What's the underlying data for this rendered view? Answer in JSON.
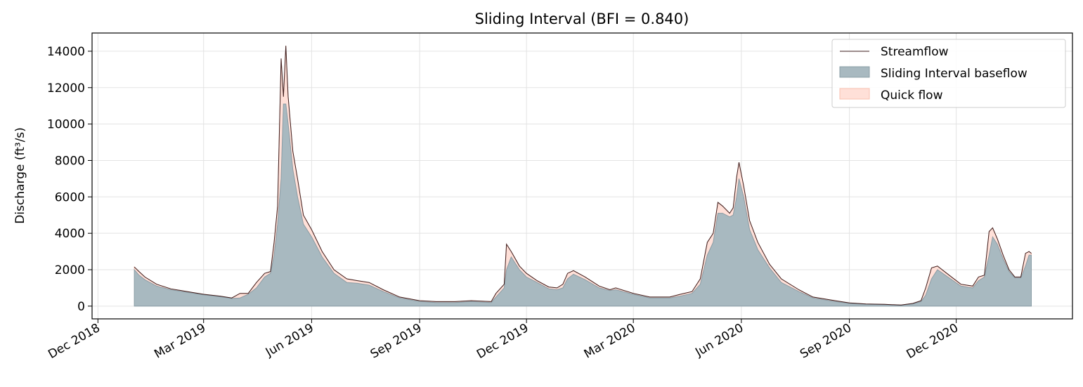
{
  "chart_data": {
    "type": "area",
    "title": "Sliding Interval (BFI = 0.840)",
    "xlabel": "",
    "ylabel": "Discharge (ft³/s)",
    "ylim": [
      -700,
      15000
    ],
    "xlim": [
      "2018-11-26",
      "2021-03-10"
    ],
    "grid": true,
    "legend_position": "top-right",
    "yticks": [
      0,
      2000,
      4000,
      6000,
      8000,
      10000,
      12000,
      14000
    ],
    "xticks": [
      {
        "date": "2018-12-01",
        "label": "Dec 2018"
      },
      {
        "date": "2019-03-01",
        "label": "Mar 2019"
      },
      {
        "date": "2019-06-01",
        "label": "Jun 2019"
      },
      {
        "date": "2019-09-01",
        "label": "Sep 2019"
      },
      {
        "date": "2019-12-01",
        "label": "Dec 2019"
      },
      {
        "date": "2020-03-01",
        "label": "Mar 2020"
      },
      {
        "date": "2020-06-01",
        "label": "Jun 2020"
      },
      {
        "date": "2020-09-01",
        "label": "Sep 2020"
      },
      {
        "date": "2020-12-01",
        "label": "Dec 2020"
      }
    ],
    "series": [
      {
        "name": "Streamflow",
        "kind": "line",
        "color": "#3d1e1e",
        "points": [
          [
            "2019-01-01",
            2150
          ],
          [
            "2019-01-05",
            1900
          ],
          [
            "2019-01-10",
            1600
          ],
          [
            "2019-01-20",
            1200
          ],
          [
            "2019-02-01",
            950
          ],
          [
            "2019-02-15",
            800
          ],
          [
            "2019-03-01",
            650
          ],
          [
            "2019-03-15",
            550
          ],
          [
            "2019-03-25",
            450
          ],
          [
            "2019-04-01",
            700
          ],
          [
            "2019-04-08",
            700
          ],
          [
            "2019-04-15",
            1300
          ],
          [
            "2019-04-22",
            1800
          ],
          [
            "2019-04-27",
            1900
          ],
          [
            "2019-04-30",
            3500
          ],
          [
            "2019-05-03",
            5500
          ],
          [
            "2019-05-06",
            13600
          ],
          [
            "2019-05-08",
            11500
          ],
          [
            "2019-05-10",
            14300
          ],
          [
            "2019-05-12",
            11500
          ],
          [
            "2019-05-16",
            8500
          ],
          [
            "2019-05-20",
            7000
          ],
          [
            "2019-05-25",
            5000
          ],
          [
            "2019-06-01",
            4200
          ],
          [
            "2019-06-10",
            3000
          ],
          [
            "2019-06-20",
            2000
          ],
          [
            "2019-07-01",
            1500
          ],
          [
            "2019-07-10",
            1400
          ],
          [
            "2019-07-20",
            1300
          ],
          [
            "2019-08-01",
            900
          ],
          [
            "2019-08-15",
            500
          ],
          [
            "2019-09-01",
            300
          ],
          [
            "2019-09-15",
            250
          ],
          [
            "2019-10-01",
            250
          ],
          [
            "2019-10-15",
            300
          ],
          [
            "2019-11-01",
            250
          ],
          [
            "2019-11-05",
            700
          ],
          [
            "2019-11-12",
            1200
          ],
          [
            "2019-11-14",
            3400
          ],
          [
            "2019-11-18",
            3000
          ],
          [
            "2019-11-25",
            2200
          ],
          [
            "2019-12-01",
            1800
          ],
          [
            "2019-12-10",
            1400
          ],
          [
            "2019-12-20",
            1050
          ],
          [
            "2019-12-27",
            1000
          ],
          [
            "2020-01-01",
            1200
          ],
          [
            "2020-01-05",
            1800
          ],
          [
            "2020-01-10",
            1950
          ],
          [
            "2020-01-20",
            1600
          ],
          [
            "2020-02-01",
            1100
          ],
          [
            "2020-02-10",
            900
          ],
          [
            "2020-02-15",
            1000
          ],
          [
            "2020-03-01",
            700
          ],
          [
            "2020-03-15",
            500
          ],
          [
            "2020-04-01",
            500
          ],
          [
            "2020-04-10",
            650
          ],
          [
            "2020-04-20",
            800
          ],
          [
            "2020-04-27",
            1500
          ],
          [
            "2020-05-03",
            3500
          ],
          [
            "2020-05-08",
            4000
          ],
          [
            "2020-05-12",
            5700
          ],
          [
            "2020-05-16",
            5500
          ],
          [
            "2020-05-22",
            5100
          ],
          [
            "2020-05-25",
            5400
          ],
          [
            "2020-05-28",
            7100
          ],
          [
            "2020-05-30",
            7900
          ],
          [
            "2020-06-03",
            6600
          ],
          [
            "2020-06-08",
            4700
          ],
          [
            "2020-06-15",
            3500
          ],
          [
            "2020-06-25",
            2300
          ],
          [
            "2020-07-05",
            1500
          ],
          [
            "2020-07-20",
            900
          ],
          [
            "2020-08-01",
            500
          ],
          [
            "2020-08-20",
            300
          ],
          [
            "2020-09-01",
            180
          ],
          [
            "2020-09-15",
            120
          ],
          [
            "2020-10-01",
            100
          ],
          [
            "2020-10-15",
            60
          ],
          [
            "2020-10-25",
            150
          ],
          [
            "2020-11-01",
            300
          ],
          [
            "2020-11-05",
            1000
          ],
          [
            "2020-11-10",
            2100
          ],
          [
            "2020-11-15",
            2200
          ],
          [
            "2020-11-25",
            1700
          ],
          [
            "2020-12-05",
            1200
          ],
          [
            "2020-12-15",
            1100
          ],
          [
            "2020-12-20",
            1600
          ],
          [
            "2020-12-25",
            1700
          ],
          [
            "2020-12-29",
            4100
          ],
          [
            "2021-01-01",
            4300
          ],
          [
            "2021-01-05",
            3700
          ],
          [
            "2021-01-10",
            2800
          ],
          [
            "2021-01-15",
            2000
          ],
          [
            "2021-01-20",
            1600
          ],
          [
            "2021-01-25",
            1600
          ],
          [
            "2021-01-29",
            2900
          ],
          [
            "2021-02-01",
            3000
          ],
          [
            "2021-02-03",
            2900
          ]
        ]
      },
      {
        "name": "Sliding Interval baseflow",
        "kind": "area",
        "color": "#a8b9c0",
        "edge_color": "#8a9da6",
        "points": [
          [
            "2019-01-01",
            2000
          ],
          [
            "2019-01-05",
            1700
          ],
          [
            "2019-01-10",
            1450
          ],
          [
            "2019-01-20",
            1100
          ],
          [
            "2019-02-01",
            900
          ],
          [
            "2019-02-15",
            760
          ],
          [
            "2019-03-01",
            620
          ],
          [
            "2019-03-15",
            520
          ],
          [
            "2019-03-25",
            420
          ],
          [
            "2019-04-01",
            450
          ],
          [
            "2019-04-08",
            650
          ],
          [
            "2019-04-15",
            1000
          ],
          [
            "2019-04-22",
            1600
          ],
          [
            "2019-04-27",
            1800
          ],
          [
            "2019-04-30",
            2800
          ],
          [
            "2019-05-03",
            4500
          ],
          [
            "2019-05-06",
            7000
          ],
          [
            "2019-05-08",
            11100
          ],
          [
            "2019-05-10",
            11100
          ],
          [
            "2019-05-12",
            10000
          ],
          [
            "2019-05-16",
            7500
          ],
          [
            "2019-05-20",
            6000
          ],
          [
            "2019-05-25",
            4500
          ],
          [
            "2019-06-01",
            3800
          ],
          [
            "2019-06-10",
            2700
          ],
          [
            "2019-06-20",
            1800
          ],
          [
            "2019-07-01",
            1300
          ],
          [
            "2019-07-10",
            1250
          ],
          [
            "2019-07-20",
            1150
          ],
          [
            "2019-08-01",
            800
          ],
          [
            "2019-08-15",
            450
          ],
          [
            "2019-09-01",
            250
          ],
          [
            "2019-09-15",
            200
          ],
          [
            "2019-10-01",
            200
          ],
          [
            "2019-10-15",
            250
          ],
          [
            "2019-11-01",
            200
          ],
          [
            "2019-11-05",
            500
          ],
          [
            "2019-11-12",
            1000
          ],
          [
            "2019-11-14",
            2000
          ],
          [
            "2019-11-18",
            2700
          ],
          [
            "2019-11-25",
            2000
          ],
          [
            "2019-12-01",
            1600
          ],
          [
            "2019-12-10",
            1300
          ],
          [
            "2019-12-20",
            950
          ],
          [
            "2019-12-27",
            900
          ],
          [
            "2020-01-01",
            1000
          ],
          [
            "2020-01-05",
            1500
          ],
          [
            "2020-01-10",
            1750
          ],
          [
            "2020-01-20",
            1450
          ],
          [
            "2020-02-01",
            1000
          ],
          [
            "2020-02-10",
            850
          ],
          [
            "2020-02-15",
            900
          ],
          [
            "2020-03-01",
            650
          ],
          [
            "2020-03-15",
            450
          ],
          [
            "2020-04-01",
            450
          ],
          [
            "2020-04-10",
            550
          ],
          [
            "2020-04-20",
            700
          ],
          [
            "2020-04-27",
            1200
          ],
          [
            "2020-05-03",
            2800
          ],
          [
            "2020-05-08",
            3500
          ],
          [
            "2020-05-12",
            5100
          ],
          [
            "2020-05-16",
            5100
          ],
          [
            "2020-05-22",
            4900
          ],
          [
            "2020-05-25",
            5000
          ],
          [
            "2020-05-28",
            6000
          ],
          [
            "2020-05-30",
            7000
          ],
          [
            "2020-06-03",
            6000
          ],
          [
            "2020-06-08",
            4200
          ],
          [
            "2020-06-15",
            3100
          ],
          [
            "2020-06-25",
            2100
          ],
          [
            "2020-07-05",
            1300
          ],
          [
            "2020-07-20",
            800
          ],
          [
            "2020-08-01",
            450
          ],
          [
            "2020-08-20",
            250
          ],
          [
            "2020-09-01",
            150
          ],
          [
            "2020-09-15",
            100
          ],
          [
            "2020-10-01",
            80
          ],
          [
            "2020-10-15",
            50
          ],
          [
            "2020-10-25",
            120
          ],
          [
            "2020-11-01",
            250
          ],
          [
            "2020-11-05",
            600
          ],
          [
            "2020-11-10",
            1500
          ],
          [
            "2020-11-15",
            2000
          ],
          [
            "2020-11-25",
            1550
          ],
          [
            "2020-12-05",
            1100
          ],
          [
            "2020-12-15",
            1000
          ],
          [
            "2020-12-20",
            1400
          ],
          [
            "2020-12-25",
            1600
          ],
          [
            "2020-12-29",
            2800
          ],
          [
            "2021-01-01",
            3800
          ],
          [
            "2021-01-05",
            3400
          ],
          [
            "2021-01-10",
            2600
          ],
          [
            "2021-01-15",
            1900
          ],
          [
            "2021-01-20",
            1550
          ],
          [
            "2021-01-25",
            1550
          ],
          [
            "2021-01-29",
            2200
          ],
          [
            "2021-02-01",
            2800
          ],
          [
            "2021-02-03",
            2800
          ]
        ]
      },
      {
        "name": "Quick flow",
        "kind": "fill_between",
        "color": "#ffe0d8",
        "edge_color": "#f8c0b0"
      }
    ]
  }
}
